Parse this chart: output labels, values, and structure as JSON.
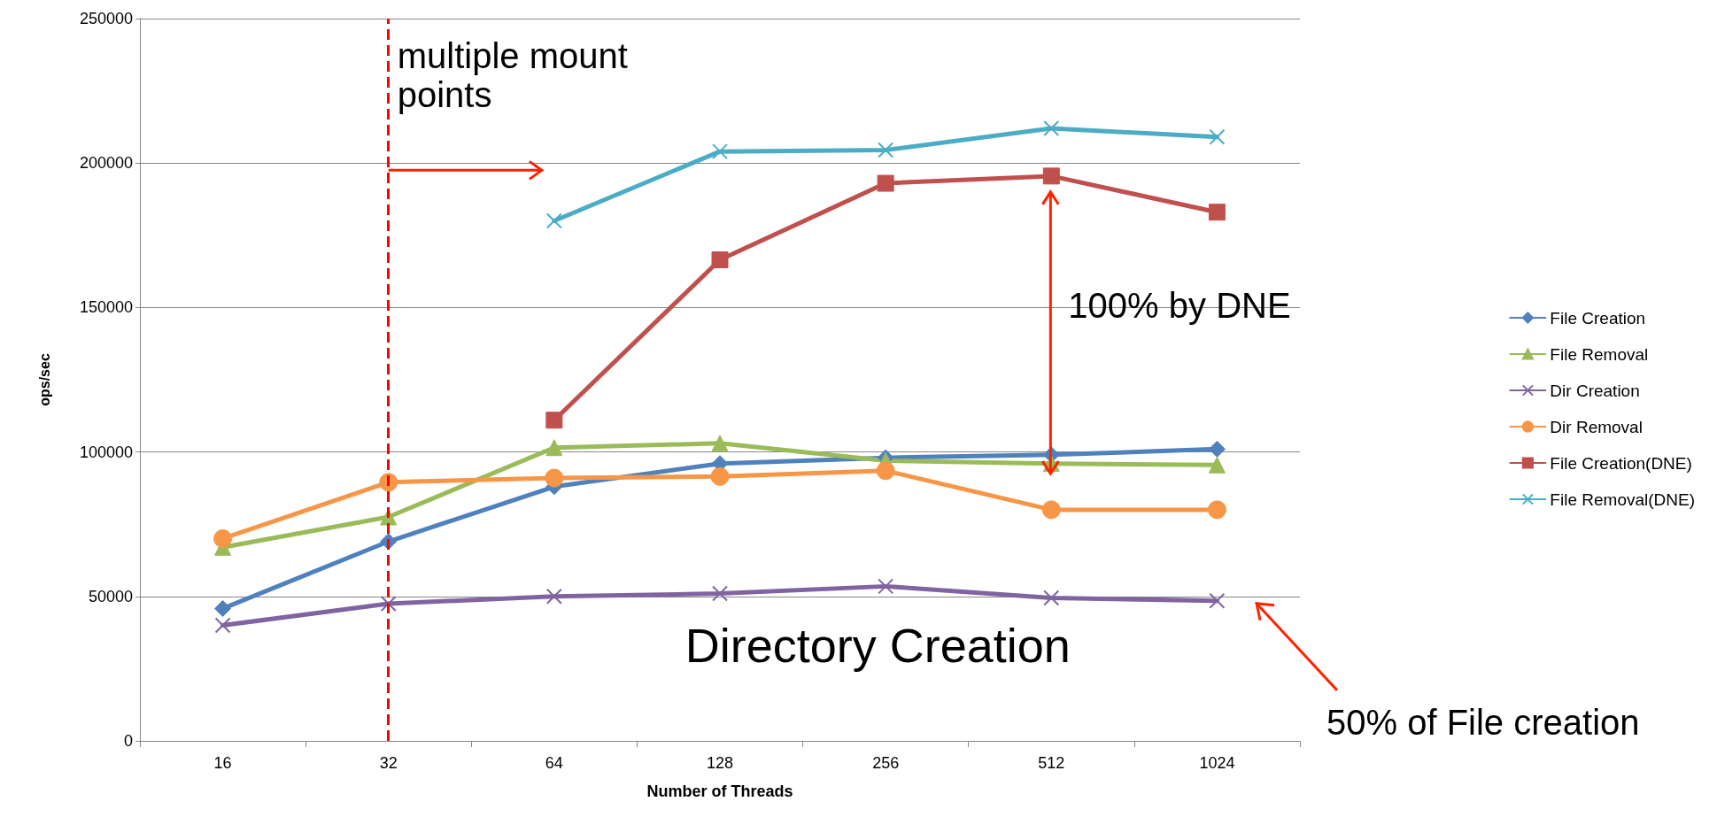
{
  "chart_data": {
    "type": "line",
    "xlabel": "Number of Threads",
    "ylabel": "ops/sec",
    "categories": [
      "16",
      "32",
      "64",
      "128",
      "256",
      "512",
      "1024"
    ],
    "ylim": [
      0,
      250000
    ],
    "yticks": [
      0,
      50000,
      100000,
      150000,
      200000,
      250000
    ],
    "grid": "y",
    "legend": "right",
    "line_style": "solid",
    "series": [
      {
        "name": "File Creation",
        "color": "#4f81bd",
        "marker": "diamond",
        "values": [
          45800,
          69000,
          88000,
          96000,
          98000,
          99000,
          101000
        ]
      },
      {
        "name": "File Removal",
        "color": "#9bbb59",
        "marker": "triangle",
        "values": [
          67000,
          77500,
          101500,
          103000,
          97000,
          96000,
          95500
        ]
      },
      {
        "name": "Dir Creation",
        "color": "#8064a2",
        "marker": "cross",
        "values": [
          40000,
          47500,
          50000,
          51000,
          53500,
          49500,
          48500
        ]
      },
      {
        "name": "Dir Removal",
        "color": "#f79646",
        "marker": "circle",
        "values": [
          70000,
          89500,
          91000,
          91500,
          93500,
          80000,
          80000
        ]
      },
      {
        "name": "File Creation(DNE)",
        "color": "#c0504d",
        "marker": "square",
        "values": [
          null,
          null,
          111000,
          166500,
          193000,
          195500,
          183000
        ]
      },
      {
        "name": "File Removal(DNE)",
        "color": "#4bacc6",
        "marker": "cross",
        "values": [
          null,
          null,
          180000,
          204000,
          204500,
          212000,
          209000
        ]
      }
    ],
    "ref_lines": [
      {
        "axis": "x",
        "value": "32",
        "label": "multiple mount points",
        "color": "#ff0000",
        "line_style": "dashed"
      }
    ],
    "annotations": [
      "100% by DNE",
      "Directory Creation",
      "50% of File creation"
    ]
  }
}
